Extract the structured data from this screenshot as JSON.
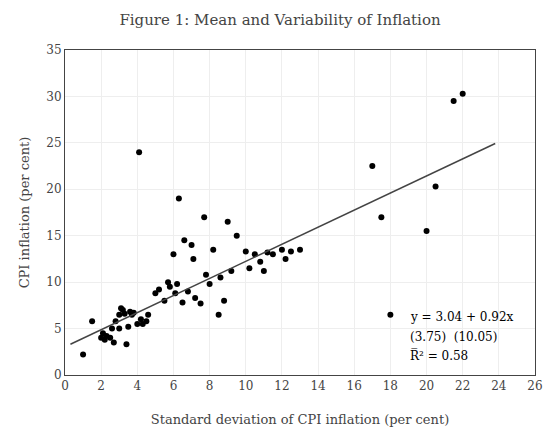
{
  "chart_data": {
    "type": "scatter",
    "title": "Figure 1: Mean and Variability of Inflation",
    "x_label": "Standard deviation of CPI inflation (per cent)",
    "y_label": "CPI inflation (per cent)",
    "xlim": [
      0,
      26
    ],
    "ylim": [
      0,
      35
    ],
    "xticks": [
      0,
      2,
      4,
      6,
      8,
      10,
      12,
      14,
      16,
      18,
      20,
      22,
      24,
      26
    ],
    "yticks": [
      0,
      5,
      10,
      15,
      20,
      25,
      30,
      35
    ],
    "grid": true,
    "series": [
      {
        "type": "scatter",
        "color": "#000000",
        "x": [
          1.0,
          1.5,
          2.0,
          2.1,
          2.2,
          2.3,
          2.5,
          2.6,
          2.7,
          2.8,
          3.0,
          3.0,
          3.1,
          3.2,
          3.3,
          3.4,
          3.5,
          3.6,
          3.7,
          3.8,
          4.0,
          4.1,
          4.2,
          4.3,
          4.5,
          4.6,
          5.0,
          5.2,
          5.5,
          5.7,
          5.8,
          6.0,
          6.1,
          6.2,
          6.3,
          6.5,
          6.6,
          6.8,
          7.0,
          7.1,
          7.2,
          7.5,
          7.7,
          7.8,
          8.0,
          8.2,
          8.5,
          8.6,
          8.8,
          9.0,
          9.2,
          9.5,
          10.0,
          10.2,
          10.5,
          10.8,
          11.0,
          11.2,
          11.5,
          12.0,
          12.2,
          12.5,
          13.0,
          17.0,
          17.5,
          18.0,
          20.0,
          20.5,
          21.5,
          22.0
        ],
        "values": [
          2.2,
          5.8,
          4.0,
          4.5,
          3.8,
          4.2,
          4.0,
          5.0,
          3.5,
          5.8,
          5.0,
          6.5,
          7.2,
          7.0,
          6.6,
          3.3,
          5.2,
          6.8,
          6.5,
          6.7,
          5.5,
          24.0,
          6.0,
          5.5,
          5.8,
          6.5,
          8.8,
          9.2,
          8.0,
          10.0,
          9.5,
          13.0,
          8.8,
          9.8,
          19.0,
          7.8,
          14.5,
          9.0,
          14.0,
          12.5,
          8.3,
          7.7,
          17.0,
          10.8,
          9.8,
          13.5,
          6.5,
          10.5,
          8.0,
          16.5,
          11.2,
          15.0,
          13.3,
          11.5,
          13.0,
          12.2,
          11.2,
          13.2,
          13.0,
          13.5,
          12.5,
          13.3,
          13.5,
          22.5,
          17.0,
          6.5,
          15.5,
          20.3,
          29.5,
          30.3
        ]
      },
      {
        "type": "line",
        "color": "#444444",
        "x": [
          0.3,
          23.8
        ],
        "values": [
          3.316,
          24.936
        ]
      }
    ],
    "annotations": [
      "y = 3.04 + 0.92x",
      "(3.75)  (10.05)",
      "R̅² = 0.58"
    ]
  }
}
